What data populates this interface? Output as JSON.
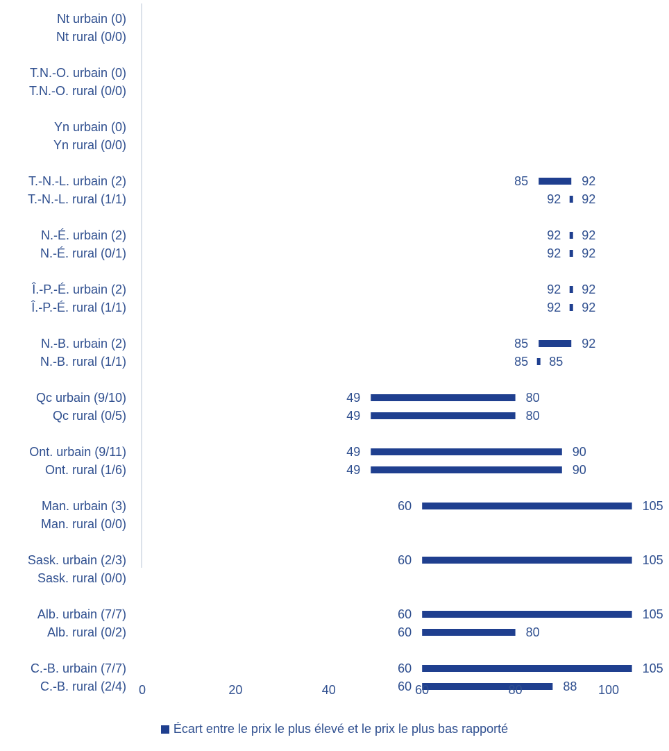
{
  "chart_data": {
    "type": "bar",
    "orientation": "horizontal-floating",
    "categories": [
      "Nt urbain (0)",
      "Nt rural (0/0)",
      "T.N.-O. urbain (0)",
      "T.N.-O. rural (0/0)",
      "Yn urbain (0)",
      "Yn rural (0/0)",
      "T.-N.-L. urbain (2)",
      "T.-N.-L. rural (1/1)",
      "N.-É. urbain (2)",
      "N.-É. rural (0/1)",
      "Î.-P.-É. urbain (2)",
      "Î.-P.-É. rural (1/1)",
      "N.-B. urbain (2)",
      "N.-B. rural (1/1)",
      "Qc urbain (9/10)",
      "Qc rural (0/5)",
      "Ont. urbain (9/11)",
      "Ont. rural (1/6)",
      "Man. urbain (3)",
      "Man. rural (0/0)",
      "Sask. urbain (2/3)",
      "Sask. rural (0/0)",
      "Alb. urbain (7/7)",
      "Alb. rural (0/2)",
      "C.-B. urbain (7/7)",
      "C.-B. rural (2/4)"
    ],
    "series": [
      {
        "name": "Écart entre le prix le plus élevé et le prix le plus bas rapporté",
        "low": [
          null,
          null,
          null,
          null,
          null,
          null,
          85,
          92,
          92,
          92,
          92,
          92,
          85,
          85,
          49,
          49,
          49,
          49,
          60,
          null,
          60,
          null,
          60,
          60,
          60,
          60
        ],
        "high": [
          null,
          null,
          null,
          null,
          null,
          null,
          92,
          92,
          92,
          92,
          92,
          92,
          92,
          85,
          80,
          80,
          90,
          90,
          105,
          null,
          105,
          null,
          105,
          80,
          105,
          88
        ]
      }
    ],
    "xlim": [
      0,
      105
    ],
    "xticks": [
      0,
      20,
      40,
      60,
      80,
      100
    ],
    "grid": false,
    "legend": "bottom",
    "colors": {
      "bar": "#1f3f8f",
      "text": "#2f4f8f",
      "axis": "#d0d8e4"
    }
  }
}
